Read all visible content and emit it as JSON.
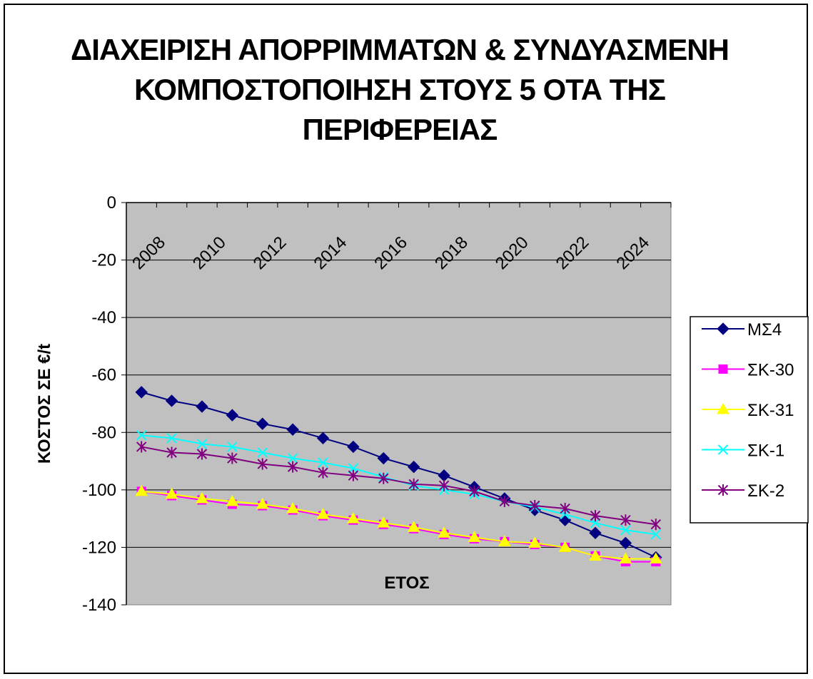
{
  "chart_data": {
    "type": "line",
    "title": "ΔΙΑΧΕΙΡΙΣΗ ΑΠΟΡΡΙΜΜΑΤΩΝ & ΣΥΝΔΥΑΣΜΕΝΗ\nΚΟΜΠΟΣΤΟΠΟΙΗΣΗ ΣΤΟΥΣ 5 ΟΤΑ ΤΗΣ\nΠΕΡΙΦΕΡΕΙΑΣ",
    "xlabel": "ΕΤΟΣ",
    "ylabel": "ΚΟΣΤΟΣ ΣΕ €/t",
    "ylim": [
      -140,
      0
    ],
    "yticks": [
      0,
      -20,
      -40,
      -60,
      -80,
      -100,
      -120,
      -140
    ],
    "x_tick_labels": [
      "2008",
      "2010",
      "2012",
      "2014",
      "2016",
      "2018",
      "2020",
      "2022",
      "2024"
    ],
    "x": [
      2009,
      2010,
      2011,
      2012,
      2013,
      2014,
      2015,
      2016,
      2017,
      2018,
      2019,
      2020,
      2021,
      2022,
      2023,
      2024,
      2025,
      2026
    ],
    "grid": "horizontal",
    "legend_position": "right",
    "plot_background": "#c0c0c0",
    "series": [
      {
        "name": "ΜΣ4",
        "color": "#000080",
        "marker": "diamond",
        "values": [
          -66,
          -69,
          -71,
          -74,
          -77,
          -79,
          -82,
          -85,
          -89,
          -92,
          -95,
          -99,
          -103,
          -107,
          -110.5,
          -115,
          -118.5,
          -123.5
        ]
      },
      {
        "name": "ΣΚ-30",
        "color": "#ff00ff",
        "marker": "square",
        "values": [
          -100.5,
          -102,
          -103.5,
          -105,
          -105.5,
          -107,
          -109,
          -110.5,
          -112,
          -113.5,
          -115.5,
          -117,
          -118,
          -119,
          -120,
          -123,
          -125,
          -125
        ]
      },
      {
        "name": "ΣΚ-31",
        "color": "#ffff00",
        "marker": "triangle",
        "values": [
          -100.5,
          -101.5,
          -103,
          -104,
          -105,
          -106.5,
          -108.5,
          -110,
          -111.5,
          -113,
          -115,
          -116.5,
          -118,
          -118.5,
          -120,
          -123,
          -124,
          -124
        ]
      },
      {
        "name": "ΣΚ-1",
        "color": "#00ffff",
        "marker": "x",
        "values": [
          -81,
          -82,
          -84,
          -85,
          -87,
          -89,
          -90.5,
          -92.5,
          -95.5,
          -98.5,
          -100,
          -101.5,
          -104,
          -106,
          -108.5,
          -111.5,
          -114,
          -115.5
        ]
      },
      {
        "name": "ΣΚ-2",
        "color": "#800080",
        "marker": "star",
        "values": [
          -85,
          -87,
          -87.5,
          -89,
          -91,
          -92,
          -94,
          -95,
          -96,
          -98,
          -98.5,
          -100.5,
          -104,
          -105.5,
          -106.5,
          -109,
          -110.5,
          -112
        ]
      }
    ]
  }
}
